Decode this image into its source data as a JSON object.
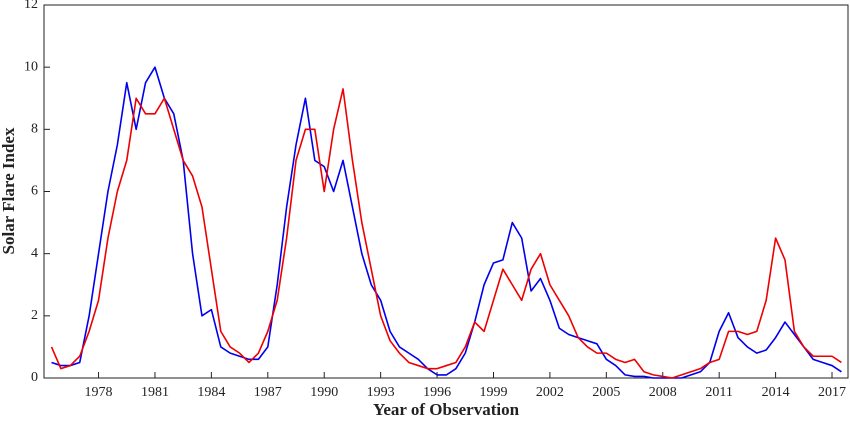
{
  "chart_data": {
    "type": "line",
    "xlabel": "Year of Observation",
    "ylabel": "Solar Flare Index",
    "x": [
      1975.5,
      1976,
      1976.5,
      1977,
      1977.5,
      1978,
      1978.5,
      1979,
      1979.5,
      1980,
      1980.5,
      1981,
      1981.5,
      1982,
      1982.5,
      1983,
      1983.5,
      1984,
      1984.5,
      1985,
      1985.5,
      1986,
      1986.5,
      1987,
      1987.5,
      1988,
      1988.5,
      1989,
      1989.5,
      1990,
      1990.5,
      1991,
      1991.5,
      1992,
      1992.5,
      1993,
      1993.5,
      1994,
      1994.5,
      1995,
      1995.5,
      1996,
      1996.5,
      1997,
      1997.5,
      1998,
      1998.5,
      1999,
      1999.5,
      2000,
      2000.5,
      2001,
      2001.5,
      2002,
      2002.5,
      2003,
      2003.5,
      2004,
      2004.5,
      2005,
      2005.5,
      2006,
      2006.5,
      2007,
      2007.5,
      2008,
      2008.5,
      2009,
      2009.5,
      2010,
      2010.5,
      2011,
      2011.5,
      2012,
      2012.5,
      2013,
      2013.5,
      2014,
      2014.5,
      2015,
      2015.5,
      2016,
      2016.5,
      2017,
      2017.5
    ],
    "series": [
      {
        "color": "#0000ee",
        "values": [
          0.5,
          0.4,
          0.4,
          0.5,
          2,
          4,
          6,
          7.5,
          9.5,
          8,
          9.5,
          10,
          9,
          8.5,
          7,
          4,
          2,
          2.2,
          1,
          0.8,
          0.7,
          0.6,
          0.6,
          1,
          3,
          5.5,
          7.5,
          9,
          7,
          6.8,
          6,
          7,
          5.5,
          4,
          3,
          2.5,
          1.5,
          1,
          0.8,
          0.6,
          0.3,
          0.1,
          0.1,
          0.3,
          0.8,
          1.8,
          3,
          3.7,
          3.8,
          5,
          4.5,
          2.8,
          3.2,
          2.5,
          1.6,
          1.4,
          1.3,
          1.2,
          1.1,
          0.6,
          0.4,
          0.1,
          0.05,
          0.05,
          0,
          0,
          0,
          0,
          0.1,
          0.2,
          0.5,
          1.5,
          2.1,
          1.3,
          1,
          0.8,
          0.9,
          1.3,
          1.8,
          1.4,
          1,
          0.6,
          0.5,
          0.4,
          0.2
        ]
      },
      {
        "color": "#ee0000",
        "values": [
          1,
          0.3,
          0.4,
          0.7,
          1.5,
          2.5,
          4.5,
          6,
          7,
          9,
          8.5,
          8.5,
          9,
          8,
          7,
          6.5,
          5.5,
          3.5,
          1.5,
          1,
          0.8,
          0.5,
          0.8,
          1.5,
          2.5,
          4.5,
          7,
          8,
          8,
          6,
          8,
          9.3,
          7,
          5,
          3.5,
          2,
          1.2,
          0.8,
          0.5,
          0.4,
          0.3,
          0.3,
          0.4,
          0.5,
          1,
          1.8,
          1.5,
          2.5,
          3.5,
          3,
          2.5,
          3.5,
          4,
          3,
          2.5,
          2,
          1.3,
          1,
          0.8,
          0.8,
          0.6,
          0.5,
          0.6,
          0.2,
          0.1,
          0.05,
          0,
          0.1,
          0.2,
          0.3,
          0.5,
          0.6,
          1.5,
          1.5,
          1.4,
          1.5,
          2.5,
          4.5,
          3.8,
          1.5,
          1,
          0.7,
          0.7,
          0.7,
          0.5
        ]
      }
    ],
    "xlim": [
      1975.1,
      2017.85
    ],
    "ylim": [
      0,
      12
    ],
    "xticks": [
      1978,
      1981,
      1984,
      1987,
      1990,
      1993,
      1996,
      1999,
      2002,
      2005,
      2008,
      2011,
      2014,
      2017
    ],
    "yticks": [
      0,
      2,
      4,
      6,
      8,
      10,
      12
    ]
  }
}
